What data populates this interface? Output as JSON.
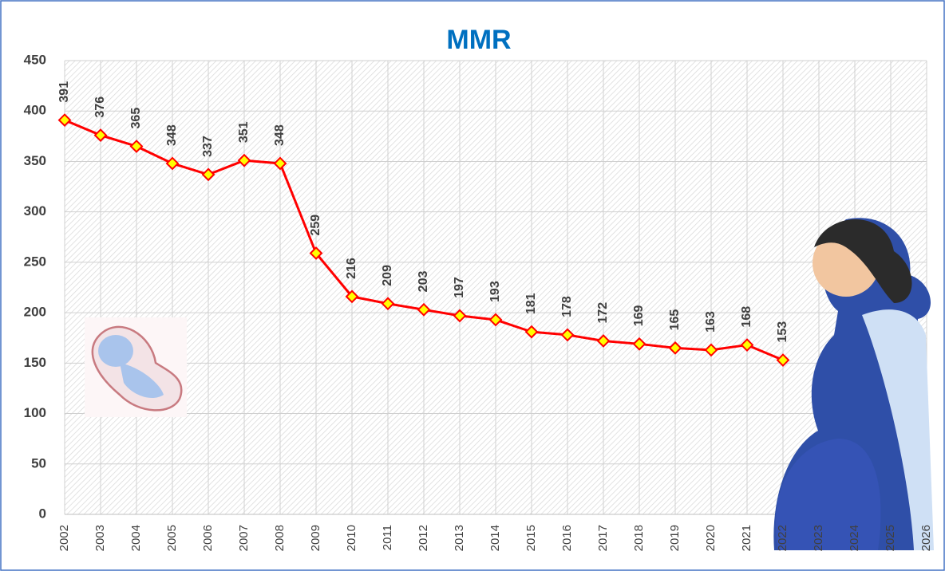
{
  "chart_data": {
    "type": "line",
    "title": "MMR",
    "x": [
      2002,
      2003,
      2004,
      2005,
      2006,
      2007,
      2008,
      2009,
      2010,
      2011,
      2012,
      2013,
      2014,
      2015,
      2016,
      2017,
      2018,
      2019,
      2020,
      2021,
      2022
    ],
    "series": [
      {
        "name": "MMR",
        "color": "#ff0000",
        "marker_color": "#ffff00",
        "values": [
          391,
          376,
          365,
          348,
          337,
          351,
          348,
          259,
          216,
          209,
          203,
          197,
          193,
          181,
          178,
          172,
          169,
          165,
          163,
          168,
          153
        ]
      }
    ],
    "xlim": [
      2002,
      2026
    ],
    "xticks": [
      2002,
      2003,
      2004,
      2005,
      2006,
      2007,
      2008,
      2009,
      2010,
      2011,
      2012,
      2013,
      2014,
      2015,
      2016,
      2017,
      2018,
      2019,
      2020,
      2021,
      2022,
      2023,
      2024,
      2025,
      2026
    ],
    "ylim": [
      0,
      450
    ],
    "yticks": [
      0,
      50,
      100,
      150,
      200,
      250,
      300,
      350,
      400,
      450
    ],
    "grid": true
  }
}
